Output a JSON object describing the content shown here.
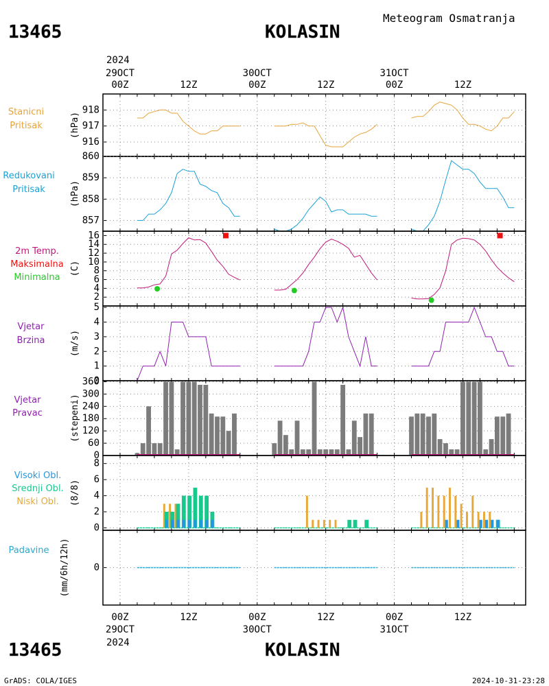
{
  "header": {
    "station_id": "13465",
    "station_name": "KOLASIN",
    "product": "Meteogram Osmatranja",
    "grads": "GrADS: COLA/IGES",
    "timestamp": "2024-10-31-23:28"
  },
  "time_axis": {
    "top_year": "2024",
    "bottom_year": "2024",
    "ticks": [
      {
        "hour": 0,
        "label": "00Z",
        "date": "29OCT"
      },
      {
        "hour": 12,
        "label": "12Z",
        "date": ""
      },
      {
        "hour": 24,
        "label": "00Z",
        "date": "30OCT"
      },
      {
        "hour": 36,
        "label": "12Z",
        "date": ""
      },
      {
        "hour": 48,
        "label": "00Z",
        "date": "31OCT"
      },
      {
        "hour": 60,
        "label": "12Z",
        "date": ""
      }
    ],
    "range_hours": [
      -3,
      71
    ]
  },
  "colors": {
    "station_pressure": "#e8a33a",
    "reduced_pressure": "#1aa0d8",
    "temperature": "#c0187a",
    "tmax": "#ee1111",
    "tmin": "#22cc22",
    "wind": "#9020b0",
    "wind_dir_bar": "#7c7c7c",
    "wind_dir_base": "#c0187a",
    "cloud_high": "#2596e0",
    "cloud_mid": "#18c88c",
    "cloud_low": "#e8a838",
    "precip": "#2aa8d0"
  },
  "panels": {
    "station_pressure": {
      "label_lines": [
        "Stanicni",
        "Pritisak"
      ],
      "unit": "(hPa)",
      "ticks": [
        "916",
        "917",
        "918"
      ]
    },
    "reduced_pressure": {
      "label_lines": [
        "Redukovani",
        "Pritisak"
      ],
      "unit": "(hPa)",
      "ticks": [
        "857",
        "858",
        "859",
        "860"
      ]
    },
    "temperature": {
      "label_lines": [
        "2m Temp.",
        "Maksimalna",
        "Minimalna"
      ],
      "unit": "(C)",
      "ticks": [
        "2",
        "4",
        "6",
        "8",
        "10",
        "12",
        "14",
        "16"
      ]
    },
    "wind_speed": {
      "label_lines": [
        "Vjetar",
        "Brzina"
      ],
      "unit": "(m/s)",
      "ticks": [
        "0",
        "1",
        "2",
        "3",
        "4",
        "5"
      ]
    },
    "wind_dir": {
      "label_lines": [
        "Vjetar",
        "Pravac"
      ],
      "unit": "(stepeni)",
      "ticks": [
        "0",
        "60",
        "120",
        "180",
        "240",
        "300",
        "360"
      ]
    },
    "clouds": {
      "label_lines": [
        "Visoki Obl.",
        "Srednji Obl.",
        "Niski Obl."
      ],
      "unit": "(8/8)",
      "ticks": [
        "0",
        "2",
        "4",
        "6",
        "8"
      ]
    },
    "precip": {
      "label_lines": [
        "Padavine"
      ],
      "unit": "(mm/6h/12h)",
      "ticks": [
        "0"
      ]
    }
  },
  "chart_data": {
    "type": "meteogram",
    "title": "KOLASIN",
    "station_pressure": {
      "unit": "hPa",
      "ylim": [
        915.1,
        919.0
      ],
      "segments": [
        {
          "x": [
            3,
            4,
            5,
            6,
            7,
            8,
            9,
            10,
            11,
            12,
            13,
            14,
            15,
            16,
            17,
            18,
            19,
            20,
            21
          ],
          "y": [
            917.5,
            917.5,
            917.8,
            917.9,
            918.0,
            918.0,
            917.8,
            917.8,
            917.3,
            917.0,
            916.7,
            916.5,
            916.5,
            916.7,
            916.7,
            917.0,
            917.0,
            917.0,
            917.0
          ]
        },
        {
          "x": [
            27,
            28,
            29,
            30,
            31,
            32,
            33,
            34,
            35,
            36,
            37,
            38,
            39,
            40,
            41,
            42,
            43,
            44,
            45
          ],
          "y": [
            917.0,
            917.0,
            917.0,
            917.1,
            917.1,
            917.2,
            917.0,
            917.0,
            916.4,
            915.8,
            915.7,
            915.7,
            915.7,
            916.0,
            916.3,
            916.5,
            916.6,
            916.8,
            917.1
          ]
        },
        {
          "x": [
            51,
            52,
            53,
            54,
            55,
            56,
            57,
            58,
            59,
            60,
            61,
            62,
            63,
            64,
            65,
            66,
            67,
            68,
            69
          ],
          "y": [
            917.5,
            917.6,
            917.6,
            917.9,
            918.3,
            918.5,
            918.4,
            918.3,
            918.0,
            917.5,
            917.1,
            917.1,
            917.0,
            916.8,
            916.7,
            917.0,
            917.5,
            917.5,
            917.9
          ]
        }
      ]
    },
    "reduced_pressure": {
      "unit": "hPa",
      "ylim": [
        856.5,
        860.0
      ],
      "segments": [
        {
          "x": [
            3,
            4,
            5,
            6,
            7,
            8,
            9,
            10,
            11,
            12,
            13,
            14,
            15,
            16,
            17,
            18,
            19,
            20,
            21
          ],
          "y": [
            857.0,
            857.0,
            857.3,
            857.3,
            857.5,
            857.8,
            858.3,
            859.2,
            859.4,
            859.3,
            859.3,
            858.7,
            858.6,
            858.4,
            858.3,
            857.8,
            857.6,
            857.2,
            857.2
          ]
        },
        {
          "x": [
            27,
            28,
            29,
            30,
            31,
            32,
            33,
            34,
            35,
            36,
            37,
            38,
            39,
            40,
            41,
            42,
            43,
            44,
            45
          ],
          "y": [
            856.6,
            856.5,
            856.5,
            856.6,
            856.8,
            857.1,
            857.5,
            857.8,
            858.1,
            857.9,
            857.4,
            857.5,
            857.5,
            857.3,
            857.3,
            857.3,
            857.3,
            857.2,
            857.2
          ]
        },
        {
          "x": [
            51,
            52,
            53,
            54,
            55,
            56,
            57,
            58,
            59,
            60,
            61,
            62,
            63,
            64,
            65,
            66,
            67,
            68,
            69
          ],
          "y": [
            856.6,
            856.5,
            856.5,
            856.8,
            857.2,
            857.9,
            858.9,
            859.8,
            859.6,
            859.4,
            859.4,
            859.2,
            858.8,
            858.5,
            858.5,
            858.5,
            858.1,
            857.6,
            857.6
          ]
        }
      ]
    },
    "temperature": {
      "unit": "C",
      "ylim": [
        0,
        17
      ],
      "segments": [
        {
          "x": [
            3,
            4,
            5,
            6,
            7,
            8,
            9,
            10,
            11,
            12,
            13,
            14,
            15,
            16,
            17,
            18,
            19,
            20,
            21
          ],
          "y": [
            4.1,
            4.1,
            4.3,
            4.8,
            5.0,
            6.8,
            11.8,
            12.7,
            14.2,
            15.5,
            15.0,
            15.1,
            14.3,
            12.4,
            10.4,
            9.0,
            7.2,
            6.5,
            5.9
          ]
        },
        {
          "x": [
            27,
            28,
            29,
            30,
            31,
            32,
            33,
            34,
            35,
            36,
            37,
            38,
            39,
            40,
            41,
            42,
            43,
            44,
            45
          ],
          "y": [
            3.6,
            3.6,
            3.8,
            4.9,
            6.0,
            7.5,
            9.4,
            11.1,
            13.0,
            14.5,
            15.2,
            14.7,
            14.0,
            13.1,
            11.1,
            11.5,
            9.5,
            7.5,
            5.9
          ]
        },
        {
          "x": [
            51,
            52,
            53,
            54,
            55,
            56,
            57,
            58,
            59,
            60,
            61,
            62,
            63,
            64,
            65,
            66,
            67,
            68,
            69
          ],
          "y": [
            1.8,
            1.6,
            1.6,
            1.7,
            2.6,
            4.1,
            8.0,
            14.0,
            15.0,
            15.4,
            15.3,
            15.0,
            14.0,
            12.5,
            10.5,
            8.8,
            7.5,
            6.4,
            5.5
          ]
        }
      ],
      "tmax": [
        {
          "x": 18.5,
          "y": 16.0
        },
        {
          "x": 66.5,
          "y": 16.0
        }
      ],
      "tmin": [
        {
          "x": 6.5,
          "y": 3.9
        },
        {
          "x": 30.5,
          "y": 3.5
        },
        {
          "x": 54.5,
          "y": 1.3
        }
      ]
    },
    "wind_speed": {
      "unit": "m/s",
      "ylim": [
        0,
        5.1
      ],
      "segments": [
        {
          "x": [
            3,
            4,
            5,
            6,
            7,
            8,
            9,
            10,
            11,
            12,
            13,
            14,
            15,
            16,
            17,
            18,
            19,
            20,
            21
          ],
          "y": [
            0,
            1,
            1,
            1,
            2,
            1,
            4,
            4,
            4,
            3,
            3,
            3,
            3,
            1,
            1,
            1,
            1,
            1,
            1
          ]
        },
        {
          "x": [
            27,
            28,
            29,
            30,
            31,
            32,
            33,
            34,
            35,
            36,
            37,
            38,
            39,
            40,
            41,
            42,
            43,
            44,
            45
          ],
          "y": [
            1,
            1,
            1,
            1,
            1,
            1,
            2,
            4,
            4,
            5,
            5,
            4,
            5,
            3,
            2,
            1,
            3,
            1,
            1
          ]
        },
        {
          "x": [
            51,
            52,
            53,
            54,
            55,
            56,
            57,
            58,
            59,
            60,
            61,
            62,
            63,
            64,
            65,
            66,
            67,
            68,
            69
          ],
          "y": [
            1,
            1,
            1,
            1,
            2,
            2,
            4,
            4,
            4,
            4,
            4,
            5,
            4,
            3,
            3,
            2,
            2,
            1,
            1
          ]
        }
      ]
    },
    "wind_dir": {
      "unit": "deg",
      "ylim": [
        0,
        365
      ],
      "bars": [
        {
          "x": 3,
          "v": 12
        },
        {
          "x": 4,
          "v": 60
        },
        {
          "x": 5,
          "v": 240
        },
        {
          "x": 6,
          "v": 60
        },
        {
          "x": 7,
          "v": 60
        },
        {
          "x": 8,
          "v": 360
        },
        {
          "x": 9,
          "v": 360
        },
        {
          "x": 10,
          "v": 30
        },
        {
          "x": 11,
          "v": 360
        },
        {
          "x": 12,
          "v": 360
        },
        {
          "x": 13,
          "v": 360
        },
        {
          "x": 14,
          "v": 345
        },
        {
          "x": 15,
          "v": 345
        },
        {
          "x": 16,
          "v": 205
        },
        {
          "x": 17,
          "v": 190
        },
        {
          "x": 18,
          "v": 190
        },
        {
          "x": 19,
          "v": 120
        },
        {
          "x": 20,
          "v": 205
        },
        {
          "x": 27,
          "v": 60
        },
        {
          "x": 28,
          "v": 170
        },
        {
          "x": 29,
          "v": 100
        },
        {
          "x": 30,
          "v": 30
        },
        {
          "x": 31,
          "v": 170
        },
        {
          "x": 32,
          "v": 30
        },
        {
          "x": 33,
          "v": 30
        },
        {
          "x": 34,
          "v": 360
        },
        {
          "x": 35,
          "v": 30
        },
        {
          "x": 36,
          "v": 30
        },
        {
          "x": 37,
          "v": 30
        },
        {
          "x": 38,
          "v": 30
        },
        {
          "x": 39,
          "v": 345
        },
        {
          "x": 40,
          "v": 30
        },
        {
          "x": 41,
          "v": 170
        },
        {
          "x": 42,
          "v": 90
        },
        {
          "x": 43,
          "v": 205
        },
        {
          "x": 44,
          "v": 205
        },
        {
          "x": 51,
          "v": 190
        },
        {
          "x": 52,
          "v": 205
        },
        {
          "x": 53,
          "v": 205
        },
        {
          "x": 54,
          "v": 190
        },
        {
          "x": 55,
          "v": 205
        },
        {
          "x": 56,
          "v": 80
        },
        {
          "x": 57,
          "v": 60
        },
        {
          "x": 58,
          "v": 30
        },
        {
          "x": 59,
          "v": 30
        },
        {
          "x": 60,
          "v": 360
        },
        {
          "x": 61,
          "v": 360
        },
        {
          "x": 62,
          "v": 360
        },
        {
          "x": 63,
          "v": 360
        },
        {
          "x": 64,
          "v": 30
        },
        {
          "x": 65,
          "v": 80
        },
        {
          "x": 66,
          "v": 190
        },
        {
          "x": 67,
          "v": 190
        },
        {
          "x": 68,
          "v": 205
        }
      ]
    },
    "clouds": {
      "unit": "octa",
      "ylim": [
        -0.3,
        9.0
      ],
      "low": [
        {
          "x": 8,
          "v": 3
        },
        {
          "x": 9,
          "v": 3
        },
        {
          "x": 10,
          "v": 3
        },
        {
          "x": 33,
          "v": 4
        },
        {
          "x": 34,
          "v": 1
        },
        {
          "x": 35,
          "v": 1
        },
        {
          "x": 36,
          "v": 1
        },
        {
          "x": 37,
          "v": 1
        },
        {
          "x": 38,
          "v": 1
        },
        {
          "x": 53,
          "v": 2
        },
        {
          "x": 54,
          "v": 5
        },
        {
          "x": 55,
          "v": 5
        },
        {
          "x": 56,
          "v": 4
        },
        {
          "x": 57,
          "v": 4
        },
        {
          "x": 58,
          "v": 5
        },
        {
          "x": 59,
          "v": 4
        },
        {
          "x": 60,
          "v": 3
        },
        {
          "x": 61,
          "v": 2
        },
        {
          "x": 62,
          "v": 4
        },
        {
          "x": 63,
          "v": 2
        },
        {
          "x": 64,
          "v": 2
        },
        {
          "x": 65,
          "v": 2
        }
      ],
      "mid": [
        {
          "x": 8,
          "v": 2
        },
        {
          "x": 9,
          "v": 2
        },
        {
          "x": 10,
          "v": 3
        },
        {
          "x": 11,
          "v": 4
        },
        {
          "x": 12,
          "v": 4
        },
        {
          "x": 13,
          "v": 5
        },
        {
          "x": 14,
          "v": 4
        },
        {
          "x": 15,
          "v": 4
        },
        {
          "x": 16,
          "v": 2
        },
        {
          "x": 40,
          "v": 1
        },
        {
          "x": 41,
          "v": 1
        },
        {
          "x": 43,
          "v": 1
        },
        {
          "x": 66,
          "v": 1
        }
      ],
      "high": [
        {
          "x": 8,
          "v": 1
        },
        {
          "x": 9,
          "v": 1
        },
        {
          "x": 10,
          "v": 1
        },
        {
          "x": 11,
          "v": 1
        },
        {
          "x": 12,
          "v": 1
        },
        {
          "x": 13,
          "v": 1
        },
        {
          "x": 14,
          "v": 1
        },
        {
          "x": 15,
          "v": 1
        },
        {
          "x": 16,
          "v": 1
        },
        {
          "x": 57,
          "v": 1
        },
        {
          "x": 59,
          "v": 1
        },
        {
          "x": 63,
          "v": 1
        },
        {
          "x": 64,
          "v": 1
        },
        {
          "x": 65,
          "v": 1
        },
        {
          "x": 66,
          "v": 1
        }
      ],
      "zero_segments": [
        [
          3,
          21
        ],
        [
          27,
          45
        ],
        [
          51,
          69
        ]
      ]
    },
    "precip": {
      "unit": "mm",
      "ylim": [
        -3,
        3
      ],
      "segments": [
        [
          3,
          21
        ],
        [
          27,
          45
        ],
        [
          51,
          69
        ]
      ],
      "value": 0
    }
  }
}
